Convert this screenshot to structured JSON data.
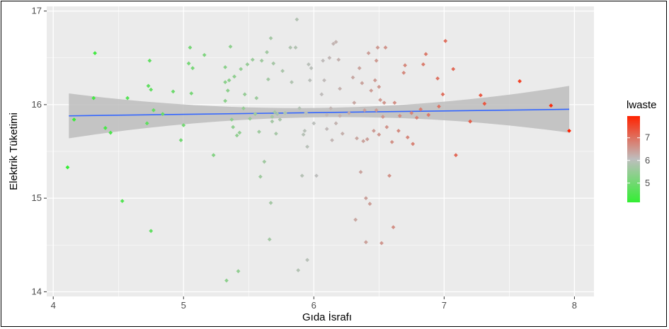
{
  "chart_data": {
    "type": "scatter",
    "xlabel": "Gıda İsrafı",
    "ylabel": "Elektrik Tüketimi",
    "xlim": [
      3.95,
      8.15
    ],
    "ylim": [
      13.95,
      17.05
    ],
    "x_ticks": [
      "4",
      "5",
      "6",
      "7",
      "8"
    ],
    "y_ticks": [
      "14",
      "15",
      "16",
      "17"
    ],
    "grid": true,
    "legend": {
      "title": "lwaste",
      "labels": [
        "5",
        "6",
        "7"
      ],
      "position": "right",
      "colors": {
        "low": "#33ee33",
        "mid": "#bebebe",
        "high": "#ff2200"
      }
    },
    "trend": {
      "x": [
        4.12,
        7.96
      ],
      "y": [
        15.88,
        15.95
      ],
      "ci_lower": [
        15.64,
        15.7
      ],
      "ci_upper": [
        16.12,
        16.2
      ],
      "ci_mid_half_width": 0.05,
      "color": "#3366ff"
    },
    "points": [
      [
        4.11,
        15.33
      ],
      [
        4.16,
        15.84
      ],
      [
        4.31,
        16.07
      ],
      [
        4.32,
        16.55
      ],
      [
        4.4,
        15.75
      ],
      [
        4.44,
        15.7
      ],
      [
        4.53,
        14.97
      ],
      [
        4.57,
        16.07
      ],
      [
        4.72,
        15.8
      ],
      [
        4.73,
        16.2
      ],
      [
        4.74,
        16.47
      ],
      [
        4.75,
        16.16
      ],
      [
        4.75,
        14.65
      ],
      [
        4.77,
        15.94
      ],
      [
        4.84,
        15.9
      ],
      [
        4.92,
        16.14
      ],
      [
        4.98,
        15.62
      ],
      [
        5.0,
        15.78
      ],
      [
        5.04,
        16.44
      ],
      [
        5.05,
        16.61
      ],
      [
        5.06,
        16.12
      ],
      [
        5.07,
        16.39
      ],
      [
        5.16,
        16.53
      ],
      [
        5.23,
        15.46
      ],
      [
        5.32,
        16.4
      ],
      [
        5.32,
        16.24
      ],
      [
        5.32,
        16.04
      ],
      [
        5.33,
        14.12
      ],
      [
        5.34,
        16.15
      ],
      [
        5.35,
        16.26
      ],
      [
        5.36,
        16.62
      ],
      [
        5.37,
        15.84
      ],
      [
        5.38,
        15.76
      ],
      [
        5.39,
        16.3
      ],
      [
        5.41,
        15.67
      ],
      [
        5.42,
        14.22
      ],
      [
        5.43,
        15.7
      ],
      [
        5.44,
        16.38
      ],
      [
        5.46,
        15.96
      ],
      [
        5.47,
        16.11
      ],
      [
        5.49,
        16.43
      ],
      [
        5.51,
        15.85
      ],
      [
        5.53,
        16.48
      ],
      [
        5.55,
        15.9
      ],
      [
        5.56,
        16.07
      ],
      [
        5.58,
        15.71
      ],
      [
        5.59,
        15.23
      ],
      [
        5.6,
        16.47
      ],
      [
        5.62,
        15.39
      ],
      [
        5.64,
        16.56
      ],
      [
        5.65,
        16.27
      ],
      [
        5.66,
        14.56
      ],
      [
        5.67,
        14.95
      ],
      [
        5.67,
        16.71
      ],
      [
        5.68,
        15.87
      ],
      [
        5.68,
        15.82
      ],
      [
        5.69,
        16.44
      ],
      [
        5.7,
        15.92
      ],
      [
        5.71,
        15.69
      ],
      [
        5.72,
        15.9
      ],
      [
        5.74,
        15.84
      ],
      [
        5.76,
        16.36
      ],
      [
        5.78,
        15.91
      ],
      [
        5.82,
        16.61
      ],
      [
        5.83,
        16.24
      ],
      [
        5.86,
        16.61
      ],
      [
        5.87,
        16.91
      ],
      [
        5.88,
        14.23
      ],
      [
        5.89,
        15.96
      ],
      [
        5.91,
        15.24
      ],
      [
        5.92,
        15.68
      ],
      [
        5.93,
        15.72
      ],
      [
        5.94,
        15.91
      ],
      [
        5.95,
        15.55
      ],
      [
        5.95,
        14.34
      ],
      [
        5.96,
        16.43
      ],
      [
        5.97,
        16.26
      ],
      [
        5.98,
        16.39
      ],
      [
        6.0,
        15.8
      ],
      [
        6.02,
        15.24
      ],
      [
        6.06,
        16.11
      ],
      [
        6.07,
        16.47
      ],
      [
        6.08,
        16.26
      ],
      [
        6.1,
        15.89
      ],
      [
        6.1,
        15.74
      ],
      [
        6.12,
        16.5
      ],
      [
        6.13,
        15.96
      ],
      [
        6.14,
        15.62
      ],
      [
        6.15,
        16.65
      ],
      [
        6.17,
        16.67
      ],
      [
        6.17,
        15.8
      ],
      [
        6.19,
        16.48
      ],
      [
        6.2,
        15.88
      ],
      [
        6.2,
        16.17
      ],
      [
        6.22,
        15.69
      ],
      [
        6.27,
        15.91
      ],
      [
        6.3,
        16.29
      ],
      [
        6.31,
        16.02
      ],
      [
        6.32,
        14.77
      ],
      [
        6.33,
        15.64
      ],
      [
        6.35,
        16.39
      ],
      [
        6.36,
        15.28
      ],
      [
        6.37,
        16.23
      ],
      [
        6.38,
        15.61
      ],
      [
        6.39,
        15.94
      ],
      [
        6.4,
        14.53
      ],
      [
        6.4,
        15.0
      ],
      [
        6.41,
        15.63
      ],
      [
        6.42,
        16.55
      ],
      [
        6.43,
        14.94
      ],
      [
        6.44,
        16.15
      ],
      [
        6.46,
        15.72
      ],
      [
        6.47,
        16.26
      ],
      [
        6.48,
        16.47
      ],
      [
        6.48,
        15.94
      ],
      [
        6.49,
        16.61
      ],
      [
        6.5,
        15.68
      ],
      [
        6.5,
        16.19
      ],
      [
        6.51,
        16.05
      ],
      [
        6.52,
        14.52
      ],
      [
        6.53,
        15.87
      ],
      [
        6.54,
        16.02
      ],
      [
        6.55,
        16.61
      ],
      [
        6.56,
        15.76
      ],
      [
        6.58,
        15.24
      ],
      [
        6.6,
        15.6
      ],
      [
        6.61,
        14.69
      ],
      [
        6.62,
        16.02
      ],
      [
        6.65,
        15.72
      ],
      [
        6.66,
        15.88
      ],
      [
        6.69,
        16.34
      ],
      [
        6.7,
        16.42
      ],
      [
        6.72,
        15.65
      ],
      [
        6.75,
        15.91
      ],
      [
        6.76,
        15.58
      ],
      [
        6.79,
        15.86
      ],
      [
        6.82,
        15.95
      ],
      [
        6.84,
        16.43
      ],
      [
        6.86,
        16.54
      ],
      [
        6.88,
        15.89
      ],
      [
        6.95,
        16.28
      ],
      [
        6.96,
        15.98
      ],
      [
        6.99,
        16.11
      ],
      [
        7.01,
        16.68
      ],
      [
        7.07,
        16.38
      ],
      [
        7.09,
        15.46
      ],
      [
        7.2,
        15.82
      ],
      [
        7.28,
        16.1
      ],
      [
        7.31,
        16.01
      ],
      [
        7.58,
        16.25
      ],
      [
        7.82,
        15.99
      ],
      [
        7.96,
        15.72
      ]
    ]
  }
}
